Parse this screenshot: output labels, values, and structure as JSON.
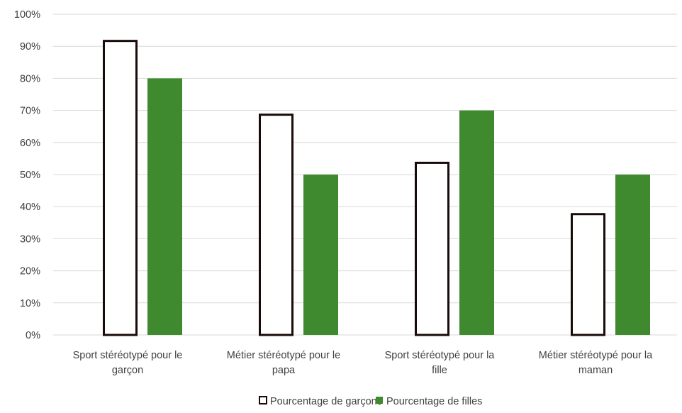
{
  "chart_data": {
    "type": "bar",
    "categories": [
      [
        "Sport stéréotypé pour le",
        "garçon"
      ],
      [
        "Métier stéréotypé pour le",
        "papa"
      ],
      [
        "Sport stéréotypé pour la",
        "fille"
      ],
      [
        "Métier stéréotypé pour la",
        "maman"
      ]
    ],
    "series": [
      {
        "name": "Pourcentage de garçons",
        "values": [
          92,
          69,
          54,
          38
        ],
        "fill": "#ffffff",
        "stroke": "#1a0a0a"
      },
      {
        "name": "Pourcentage de filles",
        "values": [
          80,
          50,
          70,
          50
        ],
        "fill": "#3f8a2e",
        "stroke": "#3f8a2e"
      }
    ],
    "ylim": [
      0,
      100
    ],
    "yticks": [
      0,
      10,
      20,
      30,
      40,
      50,
      60,
      70,
      80,
      90,
      100
    ],
    "ytick_labels": [
      "0%",
      "10%",
      "20%",
      "30%",
      "40%",
      "50%",
      "60%",
      "70%",
      "80%",
      "90%",
      "100%"
    ],
    "grid": true,
    "legend": "bottom-center",
    "title": "",
    "xlabel": "",
    "ylabel": ""
  }
}
